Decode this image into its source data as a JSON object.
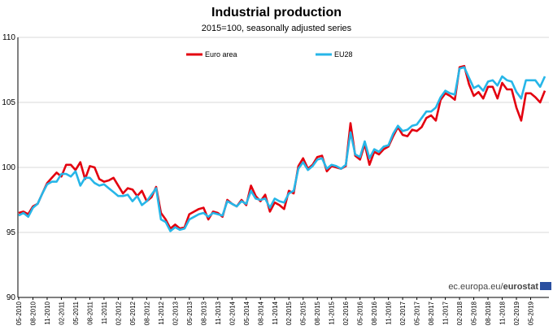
{
  "chart_data": {
    "type": "line",
    "title": "Industrial production",
    "subtitle": "2015=100, seasonally adjusted series",
    "ylim": [
      90,
      110
    ],
    "yticks": [
      90,
      95,
      100,
      105,
      110
    ],
    "grid": "horizontal",
    "legend_position": "top",
    "x_tick_labels": [
      "05-2010",
      "08-2010",
      "11-2010",
      "02-2011",
      "05-2011",
      "08-2011",
      "11-2011",
      "02-2012",
      "05-2012",
      "08-2012",
      "11-2012",
      "02-2013",
      "05-2013",
      "08-2013",
      "11-2013",
      "02-2014",
      "05-2014",
      "08-2014",
      "11-2014",
      "02-2015",
      "05-2015",
      "08-2015",
      "11-2015",
      "02-2016",
      "05-2016",
      "08-2016",
      "11-2016",
      "02-2017",
      "05-2017",
      "08-2017",
      "11-2017",
      "02-2018",
      "05-2018",
      "08-2018",
      "11-2018",
      "02-2019",
      "05-2019"
    ],
    "x_start": "2010-05",
    "x_end": "2019-05",
    "series": [
      {
        "name": "Euro area",
        "color": "#e3000f",
        "values": [
          96.5,
          96.6,
          96.4,
          97.0,
          97.2,
          98.0,
          98.8,
          99.2,
          99.6,
          99.3,
          100.2,
          100.2,
          99.8,
          100.4,
          99.1,
          100.1,
          100.0,
          99.1,
          98.9,
          99.0,
          99.2,
          98.6,
          98.0,
          98.4,
          98.3,
          97.8,
          98.2,
          97.4,
          97.7,
          98.5,
          96.5,
          96.0,
          95.3,
          95.6,
          95.3,
          95.4,
          96.4,
          96.6,
          96.8,
          96.9,
          96.0,
          96.6,
          96.5,
          96.2,
          97.5,
          97.2,
          97.0,
          97.5,
          97.1,
          98.6,
          97.8,
          97.4,
          97.9,
          96.6,
          97.3,
          97.1,
          96.8,
          98.2,
          98.0,
          100.1,
          100.7,
          99.9,
          100.2,
          100.8,
          100.9,
          99.7,
          100.1,
          100.0,
          99.9,
          100.1,
          103.4,
          100.9,
          100.6,
          101.8,
          100.2,
          101.2,
          101.0,
          101.4,
          101.6,
          102.4,
          103.1,
          102.5,
          102.4,
          102.9,
          102.8,
          103.1,
          103.8,
          104.0,
          103.6,
          105.2,
          105.7,
          105.5,
          105.2,
          107.7,
          107.8,
          106.4,
          105.5,
          105.8,
          105.3,
          106.2,
          106.2,
          105.3,
          106.5,
          106.0,
          106.0,
          104.6,
          103.6,
          105.7,
          105.7,
          105.4,
          105.0,
          105.9
        ]
      },
      {
        "name": "EU28",
        "color": "#26b6e8",
        "values": [
          96.3,
          96.5,
          96.2,
          96.9,
          97.2,
          98.0,
          98.7,
          98.9,
          98.9,
          99.5,
          99.5,
          99.3,
          99.7,
          98.6,
          99.2,
          99.2,
          98.8,
          98.6,
          98.7,
          98.4,
          98.1,
          97.8,
          97.8,
          97.9,
          97.4,
          97.8,
          97.1,
          97.4,
          97.9,
          98.4,
          96.0,
          95.8,
          95.1,
          95.4,
          95.2,
          95.3,
          96.0,
          96.2,
          96.4,
          96.5,
          96.2,
          96.5,
          96.4,
          96.3,
          97.4,
          97.2,
          97.0,
          97.4,
          97.2,
          98.2,
          97.6,
          97.5,
          97.6,
          96.9,
          97.6,
          97.4,
          97.3,
          98.0,
          98.2,
          99.9,
          100.4,
          99.8,
          100.1,
          100.6,
          100.7,
          99.9,
          100.2,
          100.1,
          99.9,
          100.2,
          102.7,
          101.0,
          100.8,
          102.0,
          100.7,
          101.4,
          101.2,
          101.6,
          101.7,
          102.6,
          103.2,
          102.8,
          102.9,
          103.2,
          103.3,
          103.8,
          104.3,
          104.3,
          104.6,
          105.4,
          105.9,
          105.7,
          105.6,
          107.6,
          107.7,
          106.9,
          106.1,
          106.3,
          105.9,
          106.6,
          106.7,
          106.3,
          107.0,
          106.7,
          106.6,
          105.8,
          105.3,
          106.7,
          106.7,
          106.7,
          106.2,
          107.0
        ]
      }
    ]
  },
  "source": {
    "url": "ec.europa.eu/",
    "brand": "eurostat"
  }
}
